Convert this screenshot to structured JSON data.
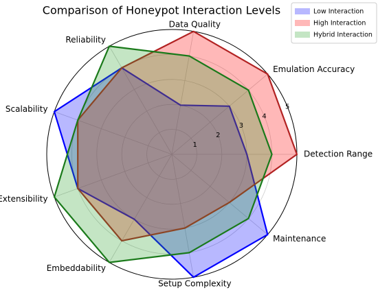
{
  "chart_data": {
    "type": "radar",
    "title": "Comparison of Honeypot Interaction Levels",
    "categories": [
      "Detection Range",
      "Emulation Accuracy",
      "Data Quality",
      "Reliability",
      "Scalability",
      "Extensibility",
      "Embeddability",
      "Setup Complexity",
      "Maintenance"
    ],
    "series": [
      {
        "name": "Low Interaction",
        "color": "#0000ff",
        "values": [
          3,
          3,
          2,
          4,
          5,
          4,
          3,
          5,
          5
        ]
      },
      {
        "name": "High Interaction",
        "color": "#ff0000",
        "line_color": "#b22222",
        "values": [
          5,
          5,
          5,
          4,
          4,
          4,
          4,
          3,
          3
        ]
      },
      {
        "name": "Hybrid Interaction",
        "color": "#2ca02c",
        "line_color": "#1a7a1a",
        "values": [
          4,
          4,
          4,
          5,
          4,
          5,
          5,
          4,
          4
        ]
      }
    ],
    "ylim": [
      0,
      5
    ],
    "yticks": [
      1,
      2,
      3,
      4,
      5
    ],
    "grid": true,
    "legend": "upper right"
  }
}
